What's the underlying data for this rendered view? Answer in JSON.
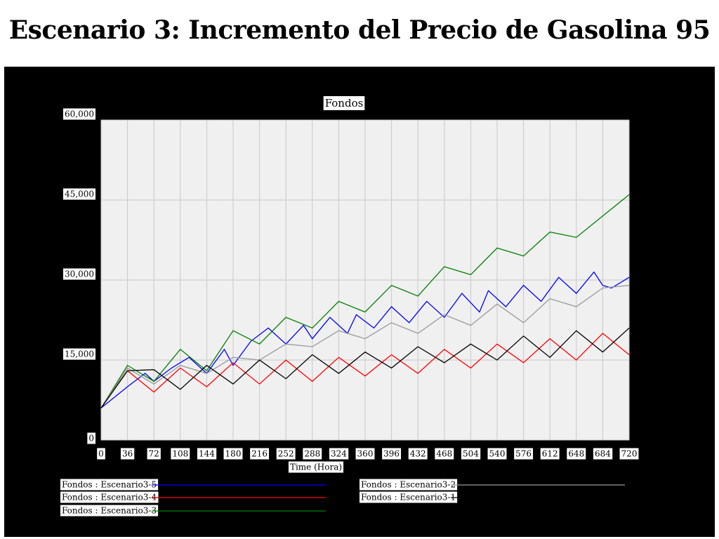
{
  "slide": {
    "title": "Escenario 3: Incremento del Precio de Gasolina 95"
  },
  "chart_data": {
    "type": "line",
    "title": "Fondos",
    "xlabel": "Time (Hora)",
    "ylabel": "",
    "xlim": [
      0,
      720
    ],
    "ylim": [
      0,
      60000
    ],
    "x_ticks": [
      0,
      36,
      72,
      108,
      144,
      180,
      216,
      252,
      288,
      324,
      360,
      396,
      432,
      468,
      504,
      540,
      576,
      612,
      648,
      684,
      720
    ],
    "y_ticks": [
      0,
      15000,
      30000,
      45000,
      60000
    ],
    "y_tick_labels": [
      "0",
      "15,000",
      "30,000",
      "45,000",
      "60,000"
    ],
    "grid": true,
    "legend_placement": "bottom",
    "series": [
      {
        "name": "Fondos : Escenario3-5",
        "color": "#0000ff",
        "x": [
          0,
          36,
          60,
          72,
          96,
          120,
          144,
          168,
          180,
          204,
          228,
          252,
          276,
          288,
          312,
          336,
          348,
          372,
          396,
          420,
          444,
          468,
          492,
          516,
          528,
          552,
          576,
          600,
          624,
          648,
          672,
          684,
          696,
          720
        ],
        "y": [
          6000,
          10000,
          12500,
          11000,
          13500,
          15500,
          12500,
          17000,
          14000,
          18500,
          21000,
          18000,
          21500,
          19000,
          23000,
          20000,
          23500,
          21000,
          25000,
          22000,
          26000,
          23000,
          27500,
          24000,
          28000,
          25000,
          29000,
          26000,
          30500,
          27500,
          31500,
          29000,
          28500,
          30500
        ]
      },
      {
        "name": "Fondos : Escenario3-4",
        "color": "#ff0000",
        "x": [
          0,
          36,
          72,
          108,
          144,
          180,
          216,
          252,
          288,
          324,
          360,
          396,
          432,
          468,
          504,
          540,
          576,
          612,
          648,
          684,
          720
        ],
        "y": [
          6000,
          13000,
          9000,
          13500,
          10000,
          14500,
          10500,
          15000,
          11000,
          15500,
          12000,
          16000,
          12500,
          17000,
          13500,
          18000,
          14500,
          19000,
          15000,
          20000,
          16000
        ]
      },
      {
        "name": "Fondos : Escenario3-3",
        "color": "#008000",
        "x": [
          0,
          36,
          72,
          108,
          144,
          180,
          216,
          252,
          288,
          324,
          360,
          396,
          432,
          468,
          504,
          540,
          576,
          612,
          648,
          684,
          720
        ],
        "y": [
          6000,
          14000,
          11000,
          17000,
          13000,
          20500,
          18000,
          23000,
          21000,
          26000,
          24000,
          29000,
          27000,
          32500,
          31000,
          36000,
          34500,
          39000,
          38000,
          42000,
          46000
        ]
      },
      {
        "name": "Fondos : Escenario3-2",
        "color": "#999999",
        "x": [
          0,
          36,
          72,
          108,
          144,
          180,
          216,
          252,
          288,
          324,
          360,
          396,
          432,
          468,
          504,
          540,
          576,
          612,
          648,
          684,
          720
        ],
        "y": [
          6000,
          13500,
          10500,
          14000,
          12500,
          15500,
          15000,
          18000,
          17500,
          20500,
          19000,
          22000,
          20000,
          23500,
          21500,
          25500,
          22000,
          26500,
          25000,
          28500,
          29000
        ]
      },
      {
        "name": "Fondos : Escenario3-1",
        "color": "#000000",
        "x": [
          0,
          36,
          72,
          108,
          144,
          180,
          216,
          252,
          288,
          324,
          360,
          396,
          432,
          468,
          504,
          540,
          576,
          612,
          648,
          684,
          720
        ],
        "y": [
          6000,
          13000,
          13200,
          9500,
          14000,
          10500,
          15000,
          11500,
          16000,
          12500,
          16500,
          13500,
          17500,
          14500,
          18000,
          15000,
          19500,
          15500,
          20500,
          16500,
          21000
        ]
      }
    ]
  }
}
